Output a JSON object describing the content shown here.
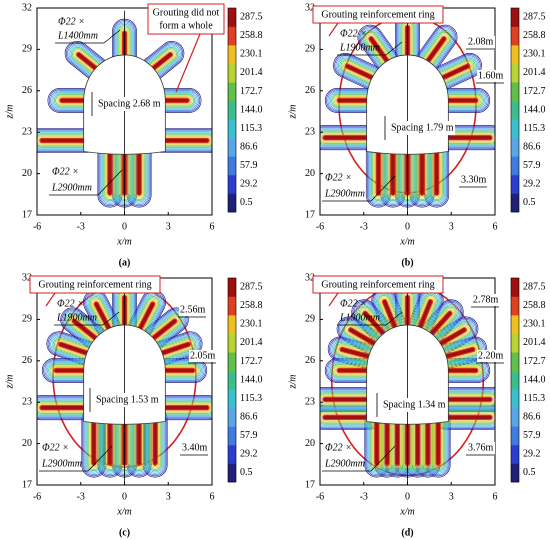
{
  "chart_data": [
    {
      "type": "contour",
      "panel_label": "(a)",
      "xlabel": "x/m",
      "ylabel": "z/m",
      "xlim": [
        -6,
        6
      ],
      "ylim": [
        17,
        32
      ],
      "xticks": [
        -6,
        -3,
        0,
        3,
        6
      ],
      "yticks": [
        17,
        20,
        23,
        26,
        29,
        32
      ],
      "colorbar": {
        "levels": [
          0.5,
          29.2,
          57.9,
          86.6,
          115.3,
          {
            "value": 144,
            "label": "144.0"
          },
          172.7,
          201.4,
          230.1,
          258.8,
          287.5
        ],
        "colors": [
          "#20207a",
          "#2a3fd0",
          "#3f7be0",
          "#56a6e8",
          "#3cc0d0",
          "#3bbf8a",
          "#62c04a",
          "#b8d430",
          "#f0c020",
          "#e04020",
          "#a01010"
        ]
      },
      "annotations": {
        "bolt_top": [
          "Φ22 ×",
          "L1400mm"
        ],
        "note": [
          "Grouting did not",
          "form a whole"
        ],
        "spacing": "Spacing 2.68 m",
        "bolt_bottom": [
          "Φ22 ×",
          "L2900mm"
        ]
      }
    },
    {
      "type": "contour",
      "panel_label": "(b)",
      "xlabel": "x/m",
      "ylabel": "z/m",
      "xlim": [
        -6,
        6
      ],
      "ylim": [
        17,
        32
      ],
      "xticks": [
        -6,
        -3,
        0,
        3,
        6
      ],
      "yticks": [
        17,
        20,
        23,
        26,
        29,
        32
      ],
      "colorbar": {
        "levels": [
          0.5,
          29.2,
          57.9,
          86.6,
          115.3,
          {
            "value": 144,
            "label": "144.0"
          },
          172.7,
          201.4,
          230.1,
          258.8,
          287.5
        ],
        "colors": [
          "#20207a",
          "#2a3fd0",
          "#3f7be0",
          "#56a6e8",
          "#3cc0d0",
          "#3bbf8a",
          "#62c04a",
          "#b8d430",
          "#f0c020",
          "#e04020",
          "#a01010"
        ]
      },
      "annotations": {
        "ring": "Grouting reinforcement ring",
        "bolt_top": [
          "Φ22 ×",
          "L1900mm"
        ],
        "dims": [
          "2.08m",
          "1.60m",
          "3.30m"
        ],
        "spacing": "Spacing 1.79 m",
        "bolt_bottom": [
          "Φ22 ×",
          "L2900mm"
        ]
      }
    },
    {
      "type": "contour",
      "panel_label": "(c)",
      "xlabel": "x/m",
      "ylabel": "z/m",
      "xlim": [
        -6,
        6
      ],
      "ylim": [
        17,
        32
      ],
      "xticks": [
        -6,
        -3,
        0,
        3,
        6
      ],
      "yticks": [
        17,
        20,
        23,
        26,
        29,
        32
      ],
      "colorbar": {
        "levels": [
          0.5,
          29.2,
          57.9,
          86.6,
          115.3,
          {
            "value": 144,
            "label": "144.0"
          },
          172.7,
          201.4,
          230.1,
          258.8,
          287.5
        ],
        "colors": [
          "#20207a",
          "#2a3fd0",
          "#3f7be0",
          "#56a6e8",
          "#3cc0d0",
          "#3bbf8a",
          "#62c04a",
          "#b8d430",
          "#f0c020",
          "#e04020",
          "#a01010"
        ]
      },
      "annotations": {
        "ring": "Grouting reinforcement ring",
        "bolt_top": [
          "Φ22 ×",
          "L1900mm"
        ],
        "dims": [
          "2.56m",
          "2.05m",
          "3.40m"
        ],
        "spacing": "Spacing 1.53 m",
        "bolt_bottom": [
          "Φ22 ×",
          "L2900mm"
        ]
      }
    },
    {
      "type": "contour",
      "panel_label": "(d)",
      "xlabel": "x/m",
      "ylabel": "z/m",
      "xlim": [
        -6,
        6
      ],
      "ylim": [
        17,
        32
      ],
      "xticks": [
        -6,
        -3,
        0,
        3,
        6
      ],
      "yticks": [
        17,
        20,
        23,
        26,
        29,
        32
      ],
      "colorbar": {
        "levels": [
          0.5,
          29.2,
          57.9,
          86.6,
          115.3,
          {
            "value": 144,
            "label": "144.0"
          },
          172.7,
          201.4,
          230.1,
          258.8,
          287.5
        ],
        "colors": [
          "#20207a",
          "#2a3fd0",
          "#3f7be0",
          "#56a6e8",
          "#3cc0d0",
          "#3bbf8a",
          "#62c04a",
          "#b8d430",
          "#f0c020",
          "#e04020",
          "#a01010"
        ]
      },
      "annotations": {
        "ring": "Grouting reinforcement ring",
        "bolt_top": [
          "Φ22 ×",
          "L1900mm"
        ],
        "dims": [
          "2.78m",
          "2.20m",
          "3.76m"
        ],
        "spacing": "Spacing 1.34 m",
        "bolt_bottom": [
          "Φ22 ×",
          "L2900mm"
        ]
      }
    }
  ]
}
